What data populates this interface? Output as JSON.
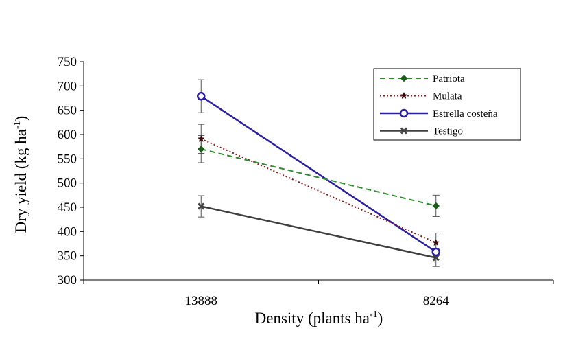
{
  "chart_data": {
    "type": "line",
    "title": "",
    "xlabel": "Density (plants ha",
    "xlabel_sup": "-1",
    "xlabel_end": ")",
    "ylabel": "Dry yield (kg ha",
    "ylabel_sup": "-1",
    "ylabel_end": ")",
    "categories": [
      "13888",
      "8264"
    ],
    "ylim": [
      300,
      750
    ],
    "yticks": [
      300,
      350,
      400,
      450,
      500,
      550,
      600,
      650,
      700,
      750
    ],
    "legend_position": "top-right",
    "series": [
      {
        "name": "Patriota",
        "values": [
          570,
          453
        ],
        "errors": [
          28,
          22
        ],
        "color": "#2e8b2e",
        "dash": "dashed",
        "marker": "diamond"
      },
      {
        "name": "Mulata",
        "values": [
          591,
          377
        ],
        "errors": [
          30,
          20
        ],
        "color": "#8b1a1a",
        "dash": "dotted",
        "marker": "star"
      },
      {
        "name": "Estrella costeña",
        "values": [
          679,
          358
        ],
        "errors": [
          34,
          0
        ],
        "color": "#2a1fa0",
        "dash": "solid",
        "marker": "circle"
      },
      {
        "name": "Testigo",
        "values": [
          452,
          346
        ],
        "errors": [
          22,
          18
        ],
        "color": "#3f3f3f",
        "dash": "solid",
        "marker": "x"
      }
    ]
  }
}
